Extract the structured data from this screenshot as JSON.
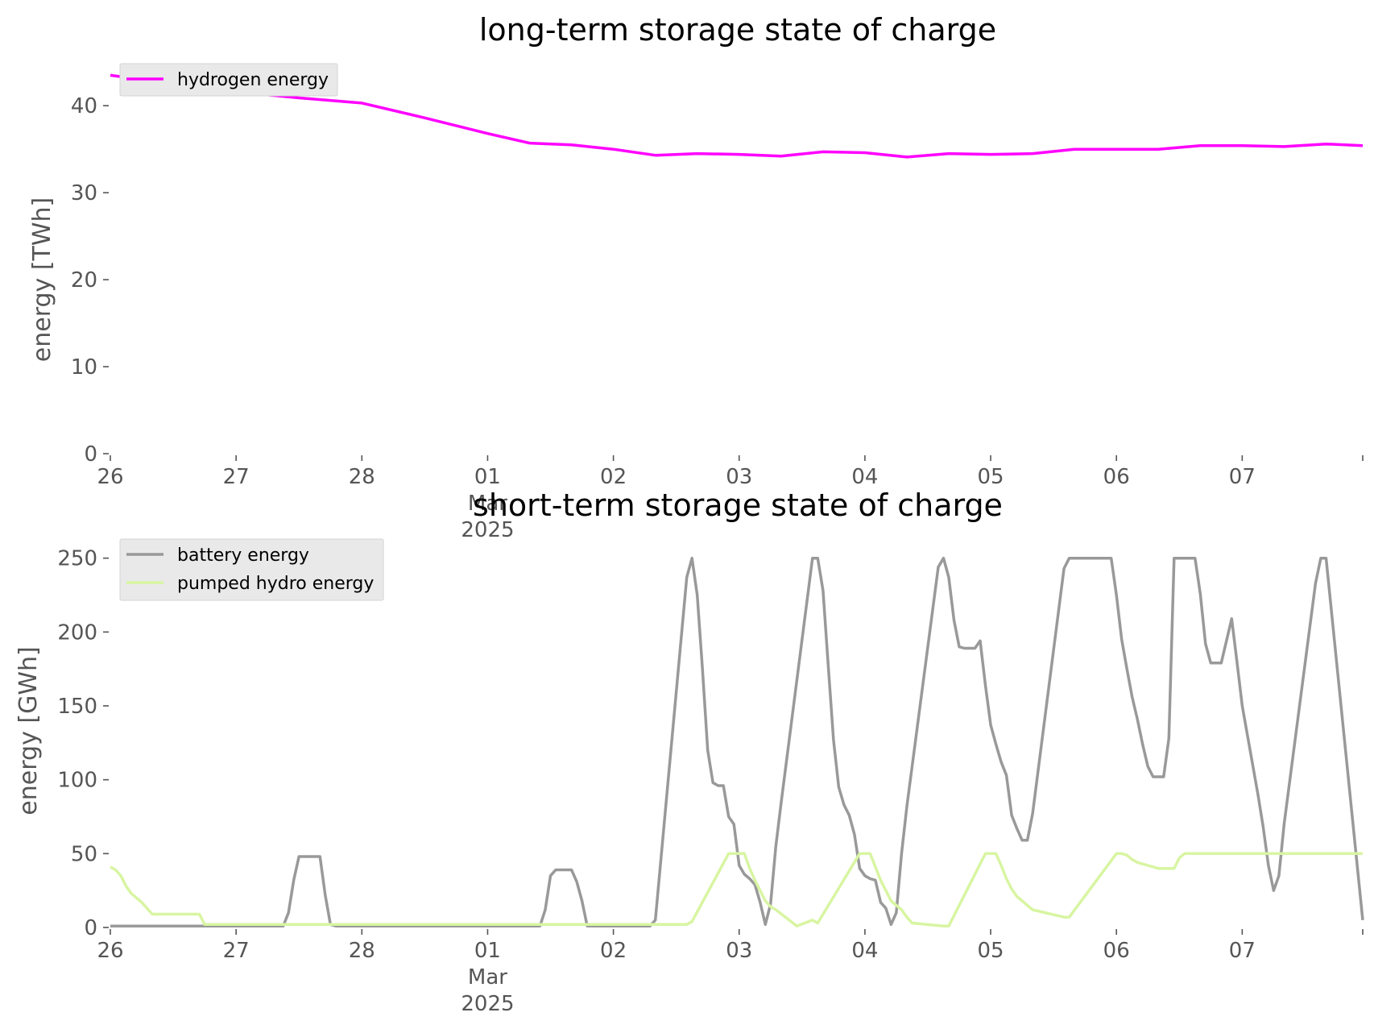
{
  "chart_data": [
    {
      "type": "line",
      "title": "long-term storage state of charge",
      "ylabel": "energy [TWh]",
      "xlabel": "",
      "ylim": [
        0,
        44
      ],
      "yticks": [
        "0",
        "10",
        "20",
        "30",
        "40"
      ],
      "ytick_values": [
        0,
        10,
        20,
        30,
        40
      ],
      "x_range_days": [
        "2025-02-26",
        "2025-03-07 23:00"
      ],
      "xticks": [
        {
          "date": "2025-02-26",
          "label": "26"
        },
        {
          "date": "2025-02-27",
          "label": "27"
        },
        {
          "date": "2025-02-28",
          "label": "28"
        },
        {
          "date": "2025-03-01",
          "label": "01",
          "sub": [
            "Mar",
            "2025"
          ]
        },
        {
          "date": "2025-03-02",
          "label": "02"
        },
        {
          "date": "2025-03-03",
          "label": "03"
        },
        {
          "date": "2025-03-04",
          "label": "04"
        },
        {
          "date": "2025-03-05",
          "label": "05"
        },
        {
          "date": "2025-03-06",
          "label": "06"
        },
        {
          "date": "2025-03-07",
          "label": "07"
        }
      ],
      "grid": false,
      "legend_position": "top-left",
      "series": [
        {
          "name": "hydrogen energy",
          "color": "#ff00ff",
          "x": [
            "2025-02-26 00:00",
            "2025-02-26 12:00",
            "2025-02-27 00:00",
            "2025-02-27 12:00",
            "2025-02-28 00:00",
            "2025-02-28 12:00",
            "2025-03-01 00:00",
            "2025-03-01 08:00",
            "2025-03-01 16:00",
            "2025-03-02 00:00",
            "2025-03-02 08:00",
            "2025-03-02 16:00",
            "2025-03-03 00:00",
            "2025-03-03 08:00",
            "2025-03-03 16:00",
            "2025-03-04 00:00",
            "2025-03-04 08:00",
            "2025-03-04 16:00",
            "2025-03-05 00:00",
            "2025-03-05 08:00",
            "2025-03-05 16:00",
            "2025-03-06 00:00",
            "2025-03-06 08:00",
            "2025-03-06 16:00",
            "2025-03-07 00:00",
            "2025-03-07 08:00",
            "2025-03-07 16:00",
            "2025-03-07 23:00"
          ],
          "values": [
            43.5,
            42.5,
            41.6,
            40.9,
            40.3,
            38.6,
            36.8,
            35.7,
            35.5,
            35.0,
            34.3,
            34.5,
            34.4,
            34.2,
            34.7,
            34.6,
            34.1,
            34.5,
            34.4,
            34.5,
            35.0,
            35.0,
            35.0,
            35.4,
            35.4,
            35.3,
            35.6,
            35.4
          ]
        }
      ]
    },
    {
      "type": "line",
      "title": "short-term storage state of charge",
      "ylabel": "energy [GWh]",
      "xlabel": "",
      "ylim": [
        0,
        258
      ],
      "yticks": [
        "0",
        "50",
        "100",
        "150",
        "200",
        "250"
      ],
      "ytick_values": [
        0,
        50,
        100,
        150,
        200,
        250
      ],
      "x_range_days": [
        "2025-02-26",
        "2025-03-07 23:00"
      ],
      "xticks": [
        {
          "date": "2025-02-26",
          "label": "26"
        },
        {
          "date": "2025-02-27",
          "label": "27"
        },
        {
          "date": "2025-02-28",
          "label": "28"
        },
        {
          "date": "2025-03-01",
          "label": "01",
          "sub": [
            "Mar",
            "2025"
          ]
        },
        {
          "date": "2025-03-02",
          "label": "02"
        },
        {
          "date": "2025-03-03",
          "label": "03"
        },
        {
          "date": "2025-03-04",
          "label": "04"
        },
        {
          "date": "2025-03-05",
          "label": "05"
        },
        {
          "date": "2025-03-06",
          "label": "06"
        },
        {
          "date": "2025-03-07",
          "label": "07"
        }
      ],
      "grid": false,
      "legend_position": "top-left",
      "series": [
        {
          "name": "battery energy",
          "color": "#999999",
          "x": [
            "2025-02-26 00:00",
            "2025-02-27 09:00",
            "2025-02-27 10:00",
            "2025-02-27 11:00",
            "2025-02-27 12:00",
            "2025-02-27 13:00",
            "2025-02-27 14:00",
            "2025-02-27 15:00",
            "2025-02-27 16:00",
            "2025-02-27 17:00",
            "2025-02-27 18:00",
            "2025-02-27 19:00",
            "2025-03-01 10:00",
            "2025-03-01 11:00",
            "2025-03-01 12:00",
            "2025-03-01 13:00",
            "2025-03-01 14:00",
            "2025-03-01 15:00",
            "2025-03-01 16:00",
            "2025-03-01 17:00",
            "2025-03-01 18:00",
            "2025-03-01 19:00",
            "2025-03-02 07:00",
            "2025-03-02 08:00",
            "2025-03-02 14:00",
            "2025-03-02 15:00",
            "2025-03-02 16:00",
            "2025-03-02 17:00",
            "2025-03-02 18:00",
            "2025-03-02 19:00",
            "2025-03-02 20:00",
            "2025-03-02 21:00",
            "2025-03-02 22:00",
            "2025-03-02 23:00",
            "2025-03-03 00:00",
            "2025-03-03 01:00",
            "2025-03-03 02:00",
            "2025-03-03 03:00",
            "2025-03-03 04:00",
            "2025-03-03 05:00",
            "2025-03-03 06:00",
            "2025-03-03 07:00",
            "2025-03-03 08:00",
            "2025-03-03 14:00",
            "2025-03-03 15:00",
            "2025-03-03 16:00",
            "2025-03-03 17:00",
            "2025-03-03 18:00",
            "2025-03-03 19:00",
            "2025-03-03 20:00",
            "2025-03-03 21:00",
            "2025-03-03 22:00",
            "2025-03-03 23:00",
            "2025-03-04 00:00",
            "2025-03-04 01:00",
            "2025-03-04 02:00",
            "2025-03-04 03:00",
            "2025-03-04 04:00",
            "2025-03-04 05:00",
            "2025-03-04 06:00",
            "2025-03-04 07:00",
            "2025-03-04 08:00",
            "2025-03-04 14:00",
            "2025-03-04 15:00",
            "2025-03-04 16:00",
            "2025-03-04 17:00",
            "2025-03-04 18:00",
            "2025-03-04 19:00",
            "2025-03-04 20:00",
            "2025-03-04 21:00",
            "2025-03-04 22:00",
            "2025-03-04 23:00",
            "2025-03-05 00:00",
            "2025-03-05 01:00",
            "2025-03-05 02:00",
            "2025-03-05 03:00",
            "2025-03-05 04:00",
            "2025-03-05 05:00",
            "2025-03-05 06:00",
            "2025-03-05 07:00",
            "2025-03-05 08:00",
            "2025-03-05 14:00",
            "2025-03-05 15:00",
            "2025-03-05 16:00",
            "2025-03-05 17:00",
            "2025-03-05 18:00",
            "2025-03-05 19:00",
            "2025-03-05 20:00",
            "2025-03-05 21:00",
            "2025-03-05 22:00",
            "2025-03-05 23:00",
            "2025-03-06 00:00",
            "2025-03-06 01:00",
            "2025-03-06 02:00",
            "2025-03-06 03:00",
            "2025-03-06 04:00",
            "2025-03-06 05:00",
            "2025-03-06 06:00",
            "2025-03-06 07:00",
            "2025-03-06 08:00",
            "2025-03-06 09:00",
            "2025-03-06 10:00",
            "2025-03-06 11:00",
            "2025-03-06 14:00",
            "2025-03-06 15:00",
            "2025-03-06 16:00",
            "2025-03-06 17:00",
            "2025-03-06 18:00",
            "2025-03-06 19:00",
            "2025-03-06 20:00",
            "2025-03-06 21:00",
            "2025-03-06 22:00",
            "2025-03-06 23:00",
            "2025-03-07 00:00",
            "2025-03-07 01:00",
            "2025-03-07 02:00",
            "2025-03-07 03:00",
            "2025-03-07 04:00",
            "2025-03-07 05:00",
            "2025-03-07 06:00",
            "2025-03-07 07:00",
            "2025-03-07 08:00",
            "2025-03-07 14:00",
            "2025-03-07 15:00",
            "2025-03-07 16:00",
            "2025-03-07 23:00"
          ],
          "values": [
            1,
            1,
            10,
            32,
            48,
            48,
            48,
            48,
            48,
            22,
            2,
            1,
            1,
            12,
            35,
            39,
            39,
            39,
            39,
            31,
            18,
            1,
            1,
            5,
            237,
            250,
            225,
            175,
            120,
            98,
            96,
            96,
            75,
            70,
            42,
            36,
            33,
            29,
            17,
            2,
            16,
            55,
            84,
            250,
            250,
            228,
            177,
            127,
            95,
            83,
            76,
            63,
            40,
            35,
            33,
            32,
            17,
            13,
            2,
            10,
            50,
            82,
            244,
            250,
            237,
            208,
            190,
            189,
            189,
            189,
            194,
            164,
            137,
            124,
            112,
            103,
            76,
            67,
            59,
            59,
            77,
            243,
            250,
            250,
            250,
            250,
            250,
            250,
            250,
            250,
            250,
            225,
            195,
            175,
            156,
            141,
            124,
            109,
            102,
            102,
            102,
            128,
            250,
            250,
            250,
            226,
            192,
            179,
            179,
            179,
            194,
            209,
            180,
            150,
            130,
            110,
            90,
            68,
            42,
            25,
            35,
            70,
            233,
            250,
            250,
            5
          ]
        },
        {
          "name": "pumped hydro energy",
          "color": "#d8f5a2",
          "x": [
            "2025-02-26 00:00",
            "2025-02-26 01:00",
            "2025-02-26 02:00",
            "2025-02-26 03:00",
            "2025-02-26 04:00",
            "2025-02-26 05:00",
            "2025-02-26 06:00",
            "2025-02-26 07:00",
            "2025-02-26 08:00",
            "2025-02-26 09:00",
            "2025-02-26 16:00",
            "2025-02-26 17:00",
            "2025-02-26 18:00",
            "2025-03-02 10:00",
            "2025-03-02 14:00",
            "2025-03-02 15:00",
            "2025-03-02 22:00",
            "2025-03-02 23:00",
            "2025-03-03 01:00",
            "2025-03-03 02:00",
            "2025-03-03 03:00",
            "2025-03-03 04:00",
            "2025-03-03 05:00",
            "2025-03-03 06:00",
            "2025-03-03 07:00",
            "2025-03-03 11:00",
            "2025-03-03 14:00",
            "2025-03-03 15:00",
            "2025-03-03 23:00",
            "2025-03-04 00:00",
            "2025-03-04 01:00",
            "2025-03-04 02:00",
            "2025-03-04 03:00",
            "2025-03-04 04:00",
            "2025-03-04 05:00",
            "2025-03-04 06:00",
            "2025-03-04 07:00",
            "2025-03-04 08:00",
            "2025-03-04 09:00",
            "2025-03-04 15:00",
            "2025-03-04 16:00",
            "2025-03-04 23:00",
            "2025-03-05 00:00",
            "2025-03-05 01:00",
            "2025-03-05 02:00",
            "2025-03-05 03:00",
            "2025-03-05 04:00",
            "2025-03-05 05:00",
            "2025-03-05 06:00",
            "2025-03-05 07:00",
            "2025-03-05 08:00",
            "2025-03-05 14:00",
            "2025-03-05 15:00",
            "2025-03-06 00:00",
            "2025-03-06 01:00",
            "2025-03-06 02:00",
            "2025-03-06 03:00",
            "2025-03-06 04:00",
            "2025-03-06 05:00",
            "2025-03-06 06:00",
            "2025-03-06 07:00",
            "2025-03-06 08:00",
            "2025-03-06 09:00",
            "2025-03-06 10:00",
            "2025-03-06 11:00",
            "2025-03-06 12:00",
            "2025-03-06 13:00",
            "2025-03-07 23:00"
          ],
          "values": [
            41,
            39,
            35,
            28,
            23,
            20,
            17,
            13,
            9,
            9,
            9,
            9,
            2,
            2,
            2,
            4,
            50,
            50,
            50,
            40,
            32,
            25,
            18,
            14,
            12,
            1,
            5,
            3,
            50,
            50,
            50,
            41,
            32,
            25,
            18,
            15,
            12,
            7,
            3,
            1,
            1,
            50,
            50,
            50,
            42,
            33,
            26,
            21,
            18,
            15,
            12,
            7,
            7,
            50,
            50,
            49,
            46,
            44,
            43,
            42,
            41,
            40,
            40,
            40,
            40,
            47,
            50,
            50
          ]
        }
      ]
    }
  ]
}
